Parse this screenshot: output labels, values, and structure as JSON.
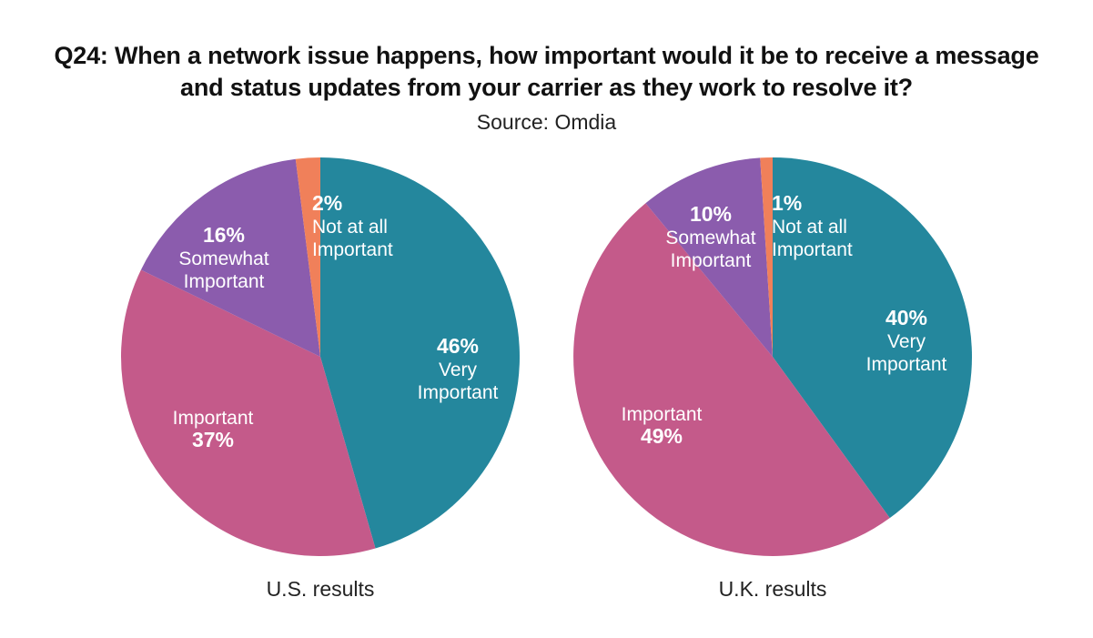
{
  "title_lines": [
    "Q24: When a network issue happens, how important would it be to receive a message",
    "and status updates from your carrier as they work to resolve it?"
  ],
  "subtitle": "Source: Omdia",
  "colors": {
    "very_important": "#24879d",
    "important": "#c45a8a",
    "somewhat_important": "#8b5cad",
    "not_at_all_important": "#f0805a"
  },
  "chart_data": [
    {
      "type": "pie",
      "caption": "U.S. results",
      "slices": [
        {
          "label_lines": [
            "Very",
            "Important"
          ],
          "value": 46,
          "pct_label": "46%",
          "color_key": "very_important",
          "pct_first": true
        },
        {
          "label_lines": [
            "Important"
          ],
          "value": 37,
          "pct_label": "37%",
          "color_key": "important",
          "pct_first": false
        },
        {
          "label_lines": [
            "Somewhat",
            "Important"
          ],
          "value": 16,
          "pct_label": "16%",
          "color_key": "somewhat_important",
          "pct_first": true
        },
        {
          "label_lines": [
            "Not at all",
            "Important"
          ],
          "value": 2,
          "pct_label": "2%",
          "color_key": "not_at_all_important",
          "pct_first": true
        }
      ]
    },
    {
      "type": "pie",
      "caption": "U.K. results",
      "slices": [
        {
          "label_lines": [
            "Very",
            "Important"
          ],
          "value": 40,
          "pct_label": "40%",
          "color_key": "very_important",
          "pct_first": true
        },
        {
          "label_lines": [
            "Important"
          ],
          "value": 49,
          "pct_label": "49%",
          "color_key": "important",
          "pct_first": false
        },
        {
          "label_lines": [
            "Somewhat",
            "Important"
          ],
          "value": 10,
          "pct_label": "10%",
          "color_key": "somewhat_important",
          "pct_first": true
        },
        {
          "label_lines": [
            "Not at all",
            "Important"
          ],
          "value": 1,
          "pct_label": "1%",
          "color_key": "not_at_all_important",
          "pct_first": true
        }
      ]
    }
  ]
}
